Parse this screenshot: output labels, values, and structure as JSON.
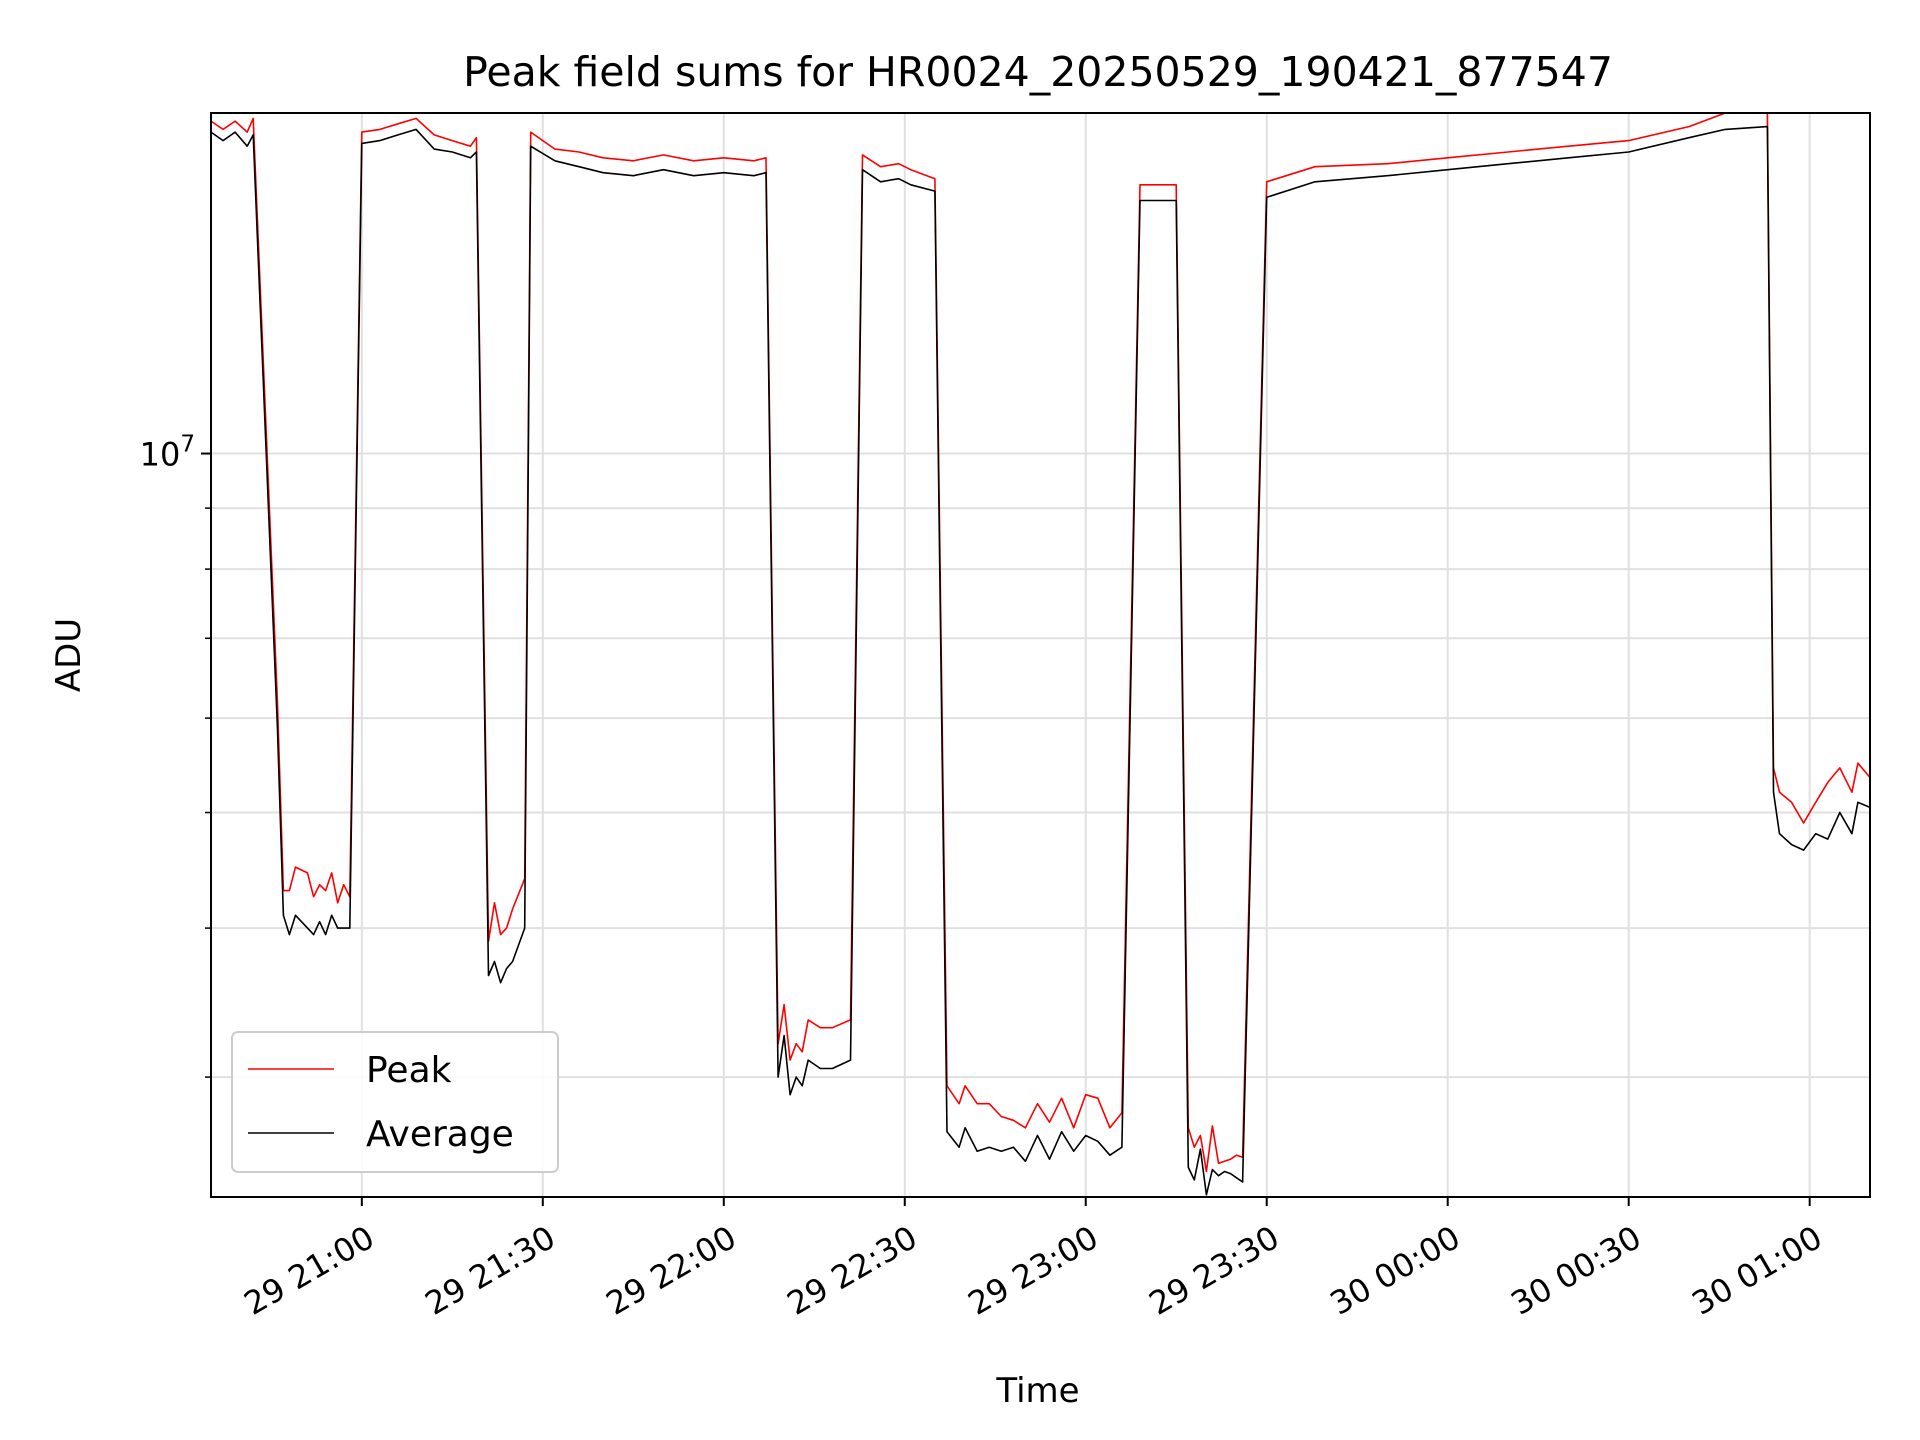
{
  "chart_data": {
    "type": "line",
    "title": "Peak field sums for HR0024_20250529_190421_877547",
    "xlabel": "Time",
    "ylabel": "ADU",
    "yscale": "log",
    "ylim": [
      2380000,
      19300000
    ],
    "xlim": [
      "2025-05-29 20:35",
      "2025-05-30 01:10"
    ],
    "grid": true,
    "legend_position": "lower-left",
    "x_ticks": [
      {
        "t": "2025-05-29 21:00",
        "label": "29 21:00"
      },
      {
        "t": "2025-05-29 21:30",
        "label": "29 21:30"
      },
      {
        "t": "2025-05-29 22:00",
        "label": "29 22:00"
      },
      {
        "t": "2025-05-29 22:30",
        "label": "29 22:30"
      },
      {
        "t": "2025-05-29 23:00",
        "label": "29 23:00"
      },
      {
        "t": "2025-05-29 23:30",
        "label": "29 23:30"
      },
      {
        "t": "2025-05-30 00:00",
        "label": "30 00:00"
      },
      {
        "t": "2025-05-30 00:30",
        "label": "30 00:30"
      },
      {
        "t": "2025-05-30 01:00",
        "label": "30 01:00"
      }
    ],
    "y_major_ticks": [
      {
        "value": 10000000,
        "base": "10",
        "exp": "7"
      }
    ],
    "y_minor_ticks": [
      3000000,
      4000000,
      5000000,
      6000000,
      7000000,
      8000000,
      9000000
    ],
    "series": [
      {
        "name": "Peak",
        "color": "#ff0000",
        "points": [
          [
            "2025-05-29 20:35",
            19000000
          ],
          [
            "2025-05-29 20:37",
            18700000
          ],
          [
            "2025-05-29 20:39",
            19000000
          ],
          [
            "2025-05-29 20:41",
            18600000
          ],
          [
            "2025-05-29 20:42",
            19100000
          ],
          [
            "2025-05-29 20:46",
            6200000
          ],
          [
            "2025-05-29 20:47",
            4300000
          ],
          [
            "2025-05-29 20:48",
            4300000
          ],
          [
            "2025-05-29 20:49",
            4500000
          ],
          [
            "2025-05-29 20:51",
            4450000
          ],
          [
            "2025-05-29 20:52",
            4250000
          ],
          [
            "2025-05-29 20:53",
            4350000
          ],
          [
            "2025-05-29 20:54",
            4300000
          ],
          [
            "2025-05-29 20:55",
            4450000
          ],
          [
            "2025-05-29 20:56",
            4200000
          ],
          [
            "2025-05-29 20:57",
            4350000
          ],
          [
            "2025-05-29 20:58",
            4250000
          ],
          [
            "2025-05-29 21:00",
            18600000
          ],
          [
            "2025-05-29 21:03",
            18700000
          ],
          [
            "2025-05-29 21:06",
            18900000
          ],
          [
            "2025-05-29 21:09",
            19100000
          ],
          [
            "2025-05-29 21:12",
            18500000
          ],
          [
            "2025-05-29 21:15",
            18300000
          ],
          [
            "2025-05-29 21:18",
            18100000
          ],
          [
            "2025-05-29 21:19",
            18400000
          ],
          [
            "2025-05-29 21:21",
            3900000
          ],
          [
            "2025-05-29 21:22",
            4200000
          ],
          [
            "2025-05-29 21:23",
            3950000
          ],
          [
            "2025-05-29 21:24",
            4000000
          ],
          [
            "2025-05-29 21:25",
            4150000
          ],
          [
            "2025-05-29 21:27",
            4400000
          ],
          [
            "2025-05-29 21:28",
            18600000
          ],
          [
            "2025-05-29 21:32",
            18000000
          ],
          [
            "2025-05-29 21:36",
            17900000
          ],
          [
            "2025-05-29 21:40",
            17700000
          ],
          [
            "2025-05-29 21:45",
            17600000
          ],
          [
            "2025-05-29 21:50",
            17800000
          ],
          [
            "2025-05-29 21:55",
            17600000
          ],
          [
            "2025-05-29 22:00",
            17700000
          ],
          [
            "2025-05-29 22:05",
            17600000
          ],
          [
            "2025-05-29 22:07",
            17700000
          ],
          [
            "2025-05-29 22:09",
            3200000
          ],
          [
            "2025-05-29 22:10",
            3450000
          ],
          [
            "2025-05-29 22:11",
            3100000
          ],
          [
            "2025-05-29 22:12",
            3200000
          ],
          [
            "2025-05-29 22:13",
            3150000
          ],
          [
            "2025-05-29 22:14",
            3350000
          ],
          [
            "2025-05-29 22:16",
            3300000
          ],
          [
            "2025-05-29 22:18",
            3300000
          ],
          [
            "2025-05-29 22:21",
            3350000
          ],
          [
            "2025-05-29 22:23",
            17800000
          ],
          [
            "2025-05-29 22:26",
            17400000
          ],
          [
            "2025-05-29 22:29",
            17500000
          ],
          [
            "2025-05-29 22:31",
            17300000
          ],
          [
            "2025-05-29 22:35",
            17000000
          ],
          [
            "2025-05-29 22:37",
            2950000
          ],
          [
            "2025-05-29 22:39",
            2850000
          ],
          [
            "2025-05-29 22:40",
            2950000
          ],
          [
            "2025-05-29 22:42",
            2850000
          ],
          [
            "2025-05-29 22:44",
            2850000
          ],
          [
            "2025-05-29 22:46",
            2780000
          ],
          [
            "2025-05-29 22:48",
            2760000
          ],
          [
            "2025-05-29 22:50",
            2720000
          ],
          [
            "2025-05-29 22:52",
            2850000
          ],
          [
            "2025-05-29 22:54",
            2750000
          ],
          [
            "2025-05-29 22:56",
            2880000
          ],
          [
            "2025-05-29 22:58",
            2720000
          ],
          [
            "2025-05-29 23:00",
            2900000
          ],
          [
            "2025-05-29 23:02",
            2880000
          ],
          [
            "2025-05-29 23:04",
            2720000
          ],
          [
            "2025-05-29 23:06",
            2800000
          ],
          [
            "2025-05-29 23:09",
            16800000
          ],
          [
            "2025-05-29 23:13",
            16800000
          ],
          [
            "2025-05-29 23:15",
            16800000
          ],
          [
            "2025-05-29 23:17",
            2720000
          ],
          [
            "2025-05-29 23:18",
            2620000
          ],
          [
            "2025-05-29 23:19",
            2680000
          ],
          [
            "2025-05-29 23:20",
            2500000
          ],
          [
            "2025-05-29 23:21",
            2730000
          ],
          [
            "2025-05-29 23:22",
            2540000
          ],
          [
            "2025-05-29 23:23",
            2550000
          ],
          [
            "2025-05-29 23:24",
            2560000
          ],
          [
            "2025-05-29 23:25",
            2580000
          ],
          [
            "2025-05-29 23:26",
            2570000
          ],
          [
            "2025-05-29 23:30",
            16900000
          ],
          [
            "2025-05-29 23:38",
            17400000
          ],
          [
            "2025-05-29 23:50",
            17500000
          ],
          [
            "2025-05-30 00:00",
            17700000
          ],
          [
            "2025-05-30 00:10",
            17900000
          ],
          [
            "2025-05-30 00:20",
            18100000
          ],
          [
            "2025-05-30 00:30",
            18300000
          ],
          [
            "2025-05-30 00:40",
            18800000
          ],
          [
            "2025-05-30 00:46",
            19300000
          ],
          [
            "2025-05-30 00:53",
            19300000
          ],
          [
            "2025-05-30 00:54",
            5450000
          ],
          [
            "2025-05-30 00:55",
            5200000
          ],
          [
            "2025-05-30 00:57",
            5100000
          ],
          [
            "2025-05-30 00:59",
            4900000
          ],
          [
            "2025-05-30 01:01",
            5100000
          ],
          [
            "2025-05-30 01:03",
            5300000
          ],
          [
            "2025-05-30 01:05",
            5450000
          ],
          [
            "2025-05-30 01:07",
            5200000
          ],
          [
            "2025-05-30 01:08",
            5500000
          ],
          [
            "2025-05-30 01:10",
            5350000
          ]
        ]
      },
      {
        "name": "Average",
        "color": "#000000",
        "points": [
          [
            "2025-05-29 20:35",
            18600000
          ],
          [
            "2025-05-29 20:37",
            18300000
          ],
          [
            "2025-05-29 20:39",
            18600000
          ],
          [
            "2025-05-29 20:41",
            18100000
          ],
          [
            "2025-05-29 20:42",
            18500000
          ],
          [
            "2025-05-29 20:46",
            5900000
          ],
          [
            "2025-05-29 20:47",
            4100000
          ],
          [
            "2025-05-29 20:48",
            3950000
          ],
          [
            "2025-05-29 20:49",
            4100000
          ],
          [
            "2025-05-29 20:51",
            4000000
          ],
          [
            "2025-05-29 20:52",
            3950000
          ],
          [
            "2025-05-29 20:53",
            4050000
          ],
          [
            "2025-05-29 20:54",
            3950000
          ],
          [
            "2025-05-29 20:55",
            4100000
          ],
          [
            "2025-05-29 20:56",
            4000000
          ],
          [
            "2025-05-29 20:57",
            4000000
          ],
          [
            "2025-05-29 20:58",
            4000000
          ],
          [
            "2025-05-29 21:00",
            18200000
          ],
          [
            "2025-05-29 21:03",
            18300000
          ],
          [
            "2025-05-29 21:06",
            18500000
          ],
          [
            "2025-05-29 21:09",
            18700000
          ],
          [
            "2025-05-29 21:12",
            18000000
          ],
          [
            "2025-05-29 21:15",
            17900000
          ],
          [
            "2025-05-29 21:18",
            17700000
          ],
          [
            "2025-05-29 21:19",
            17900000
          ],
          [
            "2025-05-29 21:21",
            3650000
          ],
          [
            "2025-05-29 21:22",
            3750000
          ],
          [
            "2025-05-29 21:23",
            3600000
          ],
          [
            "2025-05-29 21:24",
            3700000
          ],
          [
            "2025-05-29 21:25",
            3750000
          ],
          [
            "2025-05-29 21:27",
            4000000
          ],
          [
            "2025-05-29 21:28",
            18100000
          ],
          [
            "2025-05-29 21:32",
            17600000
          ],
          [
            "2025-05-29 21:36",
            17400000
          ],
          [
            "2025-05-29 21:40",
            17200000
          ],
          [
            "2025-05-29 21:45",
            17100000
          ],
          [
            "2025-05-29 21:50",
            17300000
          ],
          [
            "2025-05-29 21:55",
            17100000
          ],
          [
            "2025-05-29 22:00",
            17200000
          ],
          [
            "2025-05-29 22:05",
            17100000
          ],
          [
            "2025-05-29 22:07",
            17200000
          ],
          [
            "2025-05-29 22:09",
            3000000
          ],
          [
            "2025-05-29 22:10",
            3250000
          ],
          [
            "2025-05-29 22:11",
            2900000
          ],
          [
            "2025-05-29 22:12",
            3000000
          ],
          [
            "2025-05-29 22:13",
            2950000
          ],
          [
            "2025-05-29 22:14",
            3100000
          ],
          [
            "2025-05-29 22:16",
            3050000
          ],
          [
            "2025-05-29 22:18",
            3050000
          ],
          [
            "2025-05-29 22:21",
            3100000
          ],
          [
            "2025-05-29 22:23",
            17300000
          ],
          [
            "2025-05-29 22:26",
            16900000
          ],
          [
            "2025-05-29 22:29",
            17000000
          ],
          [
            "2025-05-29 22:31",
            16800000
          ],
          [
            "2025-05-29 22:35",
            16600000
          ],
          [
            "2025-05-29 22:37",
            2700000
          ],
          [
            "2025-05-29 22:39",
            2620000
          ],
          [
            "2025-05-29 22:40",
            2720000
          ],
          [
            "2025-05-29 22:42",
            2600000
          ],
          [
            "2025-05-29 22:44",
            2620000
          ],
          [
            "2025-05-29 22:46",
            2600000
          ],
          [
            "2025-05-29 22:48",
            2620000
          ],
          [
            "2025-05-29 22:50",
            2550000
          ],
          [
            "2025-05-29 22:52",
            2680000
          ],
          [
            "2025-05-29 22:54",
            2560000
          ],
          [
            "2025-05-29 22:56",
            2700000
          ],
          [
            "2025-05-29 22:58",
            2600000
          ],
          [
            "2025-05-29 23:00",
            2680000
          ],
          [
            "2025-05-29 23:02",
            2650000
          ],
          [
            "2025-05-29 23:04",
            2580000
          ],
          [
            "2025-05-29 23:06",
            2620000
          ],
          [
            "2025-05-29 23:09",
            16300000
          ],
          [
            "2025-05-29 23:13",
            16300000
          ],
          [
            "2025-05-29 23:15",
            16300000
          ],
          [
            "2025-05-29 23:17",
            2520000
          ],
          [
            "2025-05-29 23:18",
            2460000
          ],
          [
            "2025-05-29 23:19",
            2610000
          ],
          [
            "2025-05-29 23:20",
            2390000
          ],
          [
            "2025-05-29 23:21",
            2510000
          ],
          [
            "2025-05-29 23:22",
            2480000
          ],
          [
            "2025-05-29 23:23",
            2500000
          ],
          [
            "2025-05-29 23:24",
            2490000
          ],
          [
            "2025-05-29 23:25",
            2470000
          ],
          [
            "2025-05-29 23:26",
            2450000
          ],
          [
            "2025-05-29 23:30",
            16400000
          ],
          [
            "2025-05-29 23:38",
            16900000
          ],
          [
            "2025-05-29 23:50",
            17100000
          ],
          [
            "2025-05-30 00:00",
            17300000
          ],
          [
            "2025-05-30 00:10",
            17500000
          ],
          [
            "2025-05-30 00:20",
            17700000
          ],
          [
            "2025-05-30 00:30",
            17900000
          ],
          [
            "2025-05-30 00:40",
            18400000
          ],
          [
            "2025-05-30 00:46",
            18700000
          ],
          [
            "2025-05-30 00:53",
            18800000
          ],
          [
            "2025-05-30 00:54",
            5200000
          ],
          [
            "2025-05-30 00:55",
            4800000
          ],
          [
            "2025-05-30 00:57",
            4700000
          ],
          [
            "2025-05-30 00:59",
            4650000
          ],
          [
            "2025-05-30 01:01",
            4800000
          ],
          [
            "2025-05-30 01:03",
            4750000
          ],
          [
            "2025-05-30 01:05",
            5000000
          ],
          [
            "2025-05-30 01:07",
            4800000
          ],
          [
            "2025-05-30 01:08",
            5100000
          ],
          [
            "2025-05-30 01:10",
            5050000
          ]
        ]
      }
    ]
  }
}
